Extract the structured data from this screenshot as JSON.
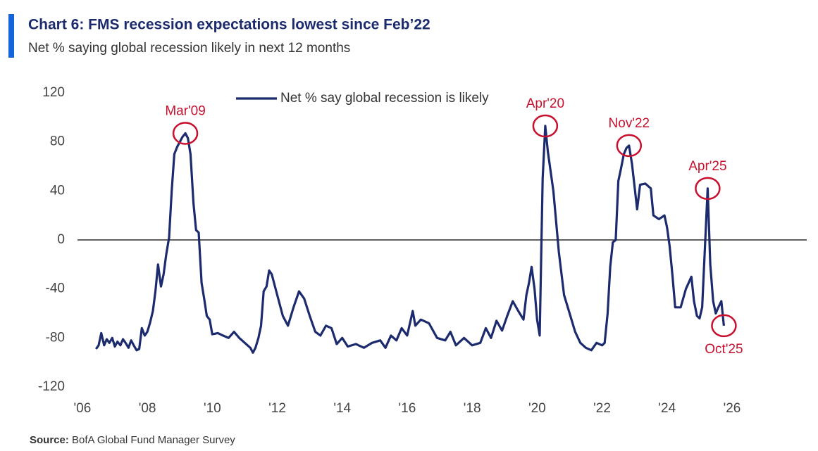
{
  "chart_data": {
    "type": "line",
    "title": "Chart 6: FMS recession expectations lowest since Feb’22",
    "subtitle": "Net % saying global recession likely in next 12 months",
    "source": {
      "label": "Source:",
      "text": "BofA Global Fund Manager Survey"
    },
    "legend_position": "top",
    "xlim": [
      2005.85,
      2028.3
    ],
    "xticks": [
      {
        "value": 2006,
        "label": "'06"
      },
      {
        "value": 2008,
        "label": "'08"
      },
      {
        "value": 2010,
        "label": "'10"
      },
      {
        "value": 2012,
        "label": "'12"
      },
      {
        "value": 2014,
        "label": "'14"
      },
      {
        "value": 2016,
        "label": "'16"
      },
      {
        "value": 2018,
        "label": "'18"
      },
      {
        "value": 2020,
        "label": "'20"
      },
      {
        "value": 2022,
        "label": "'22"
      },
      {
        "value": 2024,
        "label": "'24"
      },
      {
        "value": 2026,
        "label": "'26"
      }
    ],
    "ylim": [
      -120,
      120
    ],
    "yticks": [
      120,
      80,
      40,
      0,
      -40,
      -80,
      -120
    ],
    "grid": false,
    "x": [
      2006.42,
      2006.5,
      2006.58,
      2006.67,
      2006.75,
      2006.83,
      2006.92,
      2007.0,
      2007.08,
      2007.17,
      2007.25,
      2007.33,
      2007.42,
      2007.5,
      2007.58,
      2007.67,
      2007.75,
      2007.83,
      2007.92,
      2008.0,
      2008.08,
      2008.17,
      2008.25,
      2008.33,
      2008.42,
      2008.5,
      2008.58,
      2008.67,
      2008.75,
      2008.83,
      2008.92,
      2009.0,
      2009.08,
      2009.17,
      2009.25,
      2009.33,
      2009.42,
      2009.5,
      2009.58,
      2009.67,
      2009.75,
      2009.83,
      2009.92,
      2010.0,
      2010.17,
      2010.33,
      2010.5,
      2010.67,
      2010.83,
      2011.0,
      2011.17,
      2011.25,
      2011.33,
      2011.42,
      2011.5,
      2011.58,
      2011.67,
      2011.75,
      2011.83,
      2012.0,
      2012.17,
      2012.33,
      2012.5,
      2012.67,
      2012.83,
      2013.0,
      2013.17,
      2013.33,
      2013.5,
      2013.67,
      2013.83,
      2014.0,
      2014.17,
      2014.42,
      2014.67,
      2014.92,
      2015.17,
      2015.33,
      2015.5,
      2015.67,
      2015.83,
      2016.0,
      2016.17,
      2016.25,
      2016.42,
      2016.67,
      2016.92,
      2017.17,
      2017.33,
      2017.5,
      2017.75,
      2018.0,
      2018.25,
      2018.42,
      2018.58,
      2018.75,
      2018.92,
      2019.08,
      2019.25,
      2019.42,
      2019.58,
      2019.67,
      2019.75,
      2019.83,
      2019.92,
      2020.0,
      2020.08,
      2020.17,
      2020.25,
      2020.33,
      2020.5,
      2020.67,
      2020.83,
      2021.0,
      2021.17,
      2021.33,
      2021.5,
      2021.67,
      2021.83,
      2022.0,
      2022.08,
      2022.17,
      2022.25,
      2022.33,
      2022.42,
      2022.5,
      2022.58,
      2022.67,
      2022.75,
      2022.83,
      2022.92,
      2023.08,
      2023.17,
      2023.33,
      2023.5,
      2023.58,
      2023.75,
      2023.92,
      2024.0,
      2024.08,
      2024.17,
      2024.25,
      2024.42,
      2024.58,
      2024.75,
      2024.83,
      2024.92,
      2025.0,
      2025.08,
      2025.25,
      2025.33,
      2025.42,
      2025.5,
      2025.58,
      2025.67,
      2025.75
    ],
    "series": [
      {
        "name": "Net % say global recession is likely",
        "color": "#1c2a6e",
        "values": [
          -89,
          -86,
          -76,
          -86,
          -81,
          -84,
          -80,
          -87,
          -83,
          -86,
          -81,
          -84,
          -88,
          -82,
          -86,
          -90,
          -89,
          -72,
          -78,
          -75,
          -68,
          -58,
          -42,
          -20,
          -38,
          -28,
          -12,
          2,
          40,
          70,
          76,
          80,
          84,
          87,
          83,
          70,
          30,
          8,
          6,
          -35,
          -48,
          -62,
          -65,
          -77,
          -76,
          -78,
          -80,
          -75,
          -80,
          -84,
          -88,
          -92,
          -88,
          -80,
          -70,
          -42,
          -38,
          -25,
          -28,
          -45,
          -62,
          -70,
          -55,
          -42,
          -48,
          -62,
          -75,
          -78,
          -70,
          -72,
          -85,
          -80,
          -87,
          -85,
          -88,
          -84,
          -82,
          -88,
          -78,
          -82,
          -72,
          -78,
          -58,
          -70,
          -65,
          -68,
          -80,
          -82,
          -75,
          -86,
          -80,
          -86,
          -84,
          -72,
          -80,
          -66,
          -74,
          -62,
          -50,
          -58,
          -65,
          -45,
          -35,
          -22,
          -40,
          -65,
          -78,
          50,
          93,
          72,
          40,
          -10,
          -45,
          -60,
          -75,
          -84,
          -88,
          -90,
          -84,
          -86,
          -84,
          -60,
          -22,
          -2,
          0,
          48,
          58,
          70,
          75,
          77,
          62,
          25,
          45,
          46,
          42,
          20,
          17,
          20,
          10,
          -5,
          -30,
          -55,
          -55,
          -40,
          -30,
          -50,
          -62,
          -64,
          -55,
          42,
          -20,
          -50,
          -60,
          -55,
          -50,
          -70
        ]
      }
    ],
    "annotation_color": "#c8102e",
    "annotations": [
      {
        "text": "Mar'09",
        "x": 2009.17,
        "y": 87,
        "position": "above"
      },
      {
        "text": "Apr'20",
        "x": 2020.25,
        "y": 93,
        "position": "above"
      },
      {
        "text": "Nov'22",
        "x": 2022.83,
        "y": 77,
        "position": "above"
      },
      {
        "text": "Apr'25",
        "x": 2025.25,
        "y": 42,
        "position": "above"
      },
      {
        "text": "Oct'25",
        "x": 2025.75,
        "y": -70,
        "position": "below"
      }
    ]
  }
}
